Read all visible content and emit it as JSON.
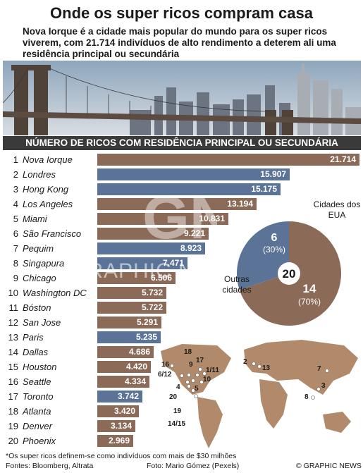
{
  "title": "Onde os super ricos compram casa",
  "subtitle": "Nova Iorque é a cidade mais popular do mundo para os super ricos viverem, com 21.714 indivíduos de alto rendimento a deterem ali uma residência principal ou secundária",
  "section_header": "NÚMERO DE RICOS COM RESIDÊNCIA PRINCIPAL OU SECUNDÁRIA",
  "colors": {
    "us": "#8b6a57",
    "other": "#5a7396",
    "header": "#3a3a3a"
  },
  "chart_data": [
    {
      "type": "bar",
      "orientation": "horizontal",
      "categories": [
        "Nova Iorque",
        "Londres",
        "Hong Kong",
        "Los Angeles",
        "Miami",
        "São Francisco",
        "Pequim",
        "Singapura",
        "Chicago",
        "Washington DC",
        "Bóston",
        "San Jose",
        "Paris",
        "Dallas",
        "Houston",
        "Seattle",
        "Toronto",
        "Atlanta",
        "Denver",
        "Phoenix"
      ],
      "ranks": [
        "1",
        "2",
        "3",
        "4",
        "5",
        "6",
        "7",
        "8",
        "9",
        "10",
        "11",
        "12",
        "13",
        "14",
        "15",
        "16",
        "17",
        "18",
        "19",
        "20"
      ],
      "values": [
        21714,
        15907,
        15175,
        13194,
        10831,
        9221,
        8923,
        7471,
        6506,
        5732,
        5722,
        5291,
        5235,
        4686,
        4420,
        4334,
        3742,
        3420,
        3134,
        2969
      ],
      "labels": [
        "21.714",
        "15.907",
        "15.175",
        "13.194",
        "10.831",
        "9.221",
        "8.923",
        "7.471",
        "6.506",
        "5.732",
        "5.722",
        "5.291",
        "5.235",
        "4.686",
        "4.420",
        "4.334",
        "3.742",
        "3.420",
        "3.134",
        "2.969"
      ],
      "group": [
        "us",
        "other",
        "other",
        "us",
        "us",
        "us",
        "other",
        "other",
        "us",
        "us",
        "us",
        "us",
        "other",
        "us",
        "us",
        "us",
        "other",
        "us",
        "us",
        "us"
      ],
      "xlim": [
        0,
        21714
      ]
    },
    {
      "type": "pie",
      "center_label": "20",
      "slices": [
        {
          "name": "Cidades dos EUA",
          "value": 14,
          "value_label": "14",
          "percent_label": "(70%)",
          "color": "#8b6a57"
        },
        {
          "name": "Outras cidades",
          "value": 6,
          "value_label": "6",
          "percent_label": "(30%)",
          "color": "#5a7396"
        }
      ]
    }
  ],
  "map_labels": {
    "americas": [
      "16",
      "6/12",
      "18",
      "9",
      "17",
      "1/11",
      "10",
      "4",
      "5",
      "20",
      "19",
      "14/15"
    ],
    "europe_asia": [
      "2",
      "13",
      "7",
      "3",
      "8"
    ]
  },
  "footnote": "*Os super ricos definem-se como indivíduos com mais de $30 milhões",
  "sources": "Fontes: Bloomberg, Altrata",
  "photo_credit": "Foto: Mario Gómez (Pexels)",
  "brand": "© GRAPHIC NEWS",
  "watermark": "GRAPHIC NEWS"
}
